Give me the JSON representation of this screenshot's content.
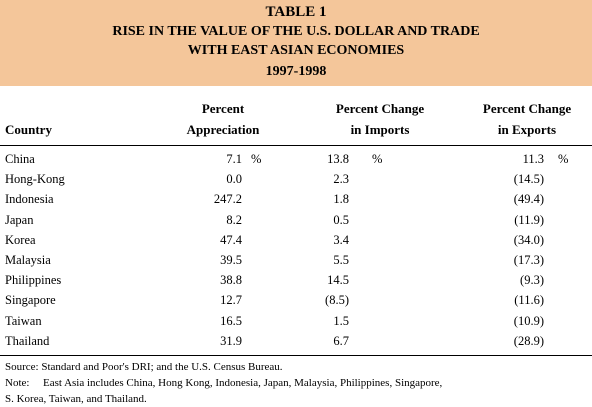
{
  "header": {
    "table_label": "TABLE 1",
    "title_line1": "RISE IN THE VALUE OF THE U.S. DOLLAR AND TRADE",
    "title_line2": "WITH EAST ASIAN ECONOMIES",
    "years": "1997-1998"
  },
  "columns": {
    "country": "Country",
    "appreciation_line1": "Percent",
    "appreciation_line2": "Appreciation",
    "imports_line1": "Percent Change",
    "imports_line2": "in Imports",
    "exports_line1": "Percent Change",
    "exports_line2": "in Exports"
  },
  "rows": [
    {
      "country": "China",
      "appreciation": "7.1",
      "imports": "13.8",
      "exports": "11.3"
    },
    {
      "country": "Hong-Kong",
      "appreciation": "0.0",
      "imports": "2.3",
      "exports": "(14.5)"
    },
    {
      "country": "Indonesia",
      "appreciation": "247.2",
      "imports": "1.8",
      "exports": "(49.4)"
    },
    {
      "country": "Japan",
      "appreciation": "8.2",
      "imports": "0.5",
      "exports": "(11.9)"
    },
    {
      "country": "Korea",
      "appreciation": "47.4",
      "imports": "3.4",
      "exports": "(34.0)"
    },
    {
      "country": "Malaysia",
      "appreciation": "39.5",
      "imports": "5.5",
      "exports": "(17.3)"
    },
    {
      "country": "Philippines",
      "appreciation": "38.8",
      "imports": "14.5",
      "exports": "(9.3)"
    },
    {
      "country": "Singapore",
      "appreciation": "12.7",
      "imports": "(8.5)",
      "exports": "(11.6)"
    },
    {
      "country": "Taiwan",
      "appreciation": "16.5",
      "imports": "1.5",
      "exports": "(10.9)"
    },
    {
      "country": "Thailand",
      "appreciation": "31.9",
      "imports": "6.7",
      "exports": "(28.9)"
    }
  ],
  "percent_sign": "%",
  "footer": {
    "source": "Source:  Standard and Poor's DRI; and the U.S. Census Bureau.",
    "note_label": "Note:",
    "note_line1": "East Asia includes China, Hong Kong, Indonesia, Japan, Malaysia, Philippines, Singapore,",
    "note_line2": "S. Korea, Taiwan, and Thailand."
  },
  "colors": {
    "header_background": "#f4c69a"
  }
}
